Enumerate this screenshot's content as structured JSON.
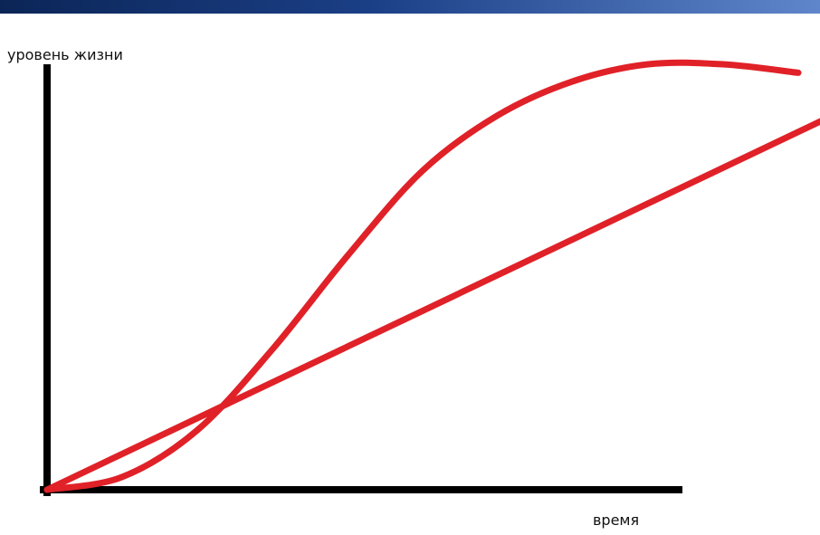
{
  "chart_data": {
    "type": "line",
    "title": "",
    "xlabel": "время",
    "ylabel": "уровень жизни",
    "xlim": [
      0,
      100
    ],
    "ylim": [
      0,
      100
    ],
    "grid": false,
    "legend": "none",
    "series": [
      {
        "values": [
          {
            "x": 0,
            "y": 0
          },
          {
            "x": 10,
            "y": 3
          },
          {
            "x": 20,
            "y": 14
          },
          {
            "x": 30,
            "y": 33
          },
          {
            "x": 40,
            "y": 55
          },
          {
            "x": 50,
            "y": 75
          },
          {
            "x": 60,
            "y": 88
          },
          {
            "x": 70,
            "y": 96
          },
          {
            "x": 80,
            "y": 100
          },
          {
            "x": 90,
            "y": 100
          },
          {
            "x": 100,
            "y": 98
          }
        ],
        "color": "#e02128"
      },
      {
        "values": [
          {
            "x": 0,
            "y": 0
          },
          {
            "x": 107,
            "y": 90
          }
        ],
        "color": "#e02128"
      }
    ]
  },
  "colors": {
    "axis": "#000000",
    "curve": "#e02128",
    "top_bar": "#0b2557"
  }
}
